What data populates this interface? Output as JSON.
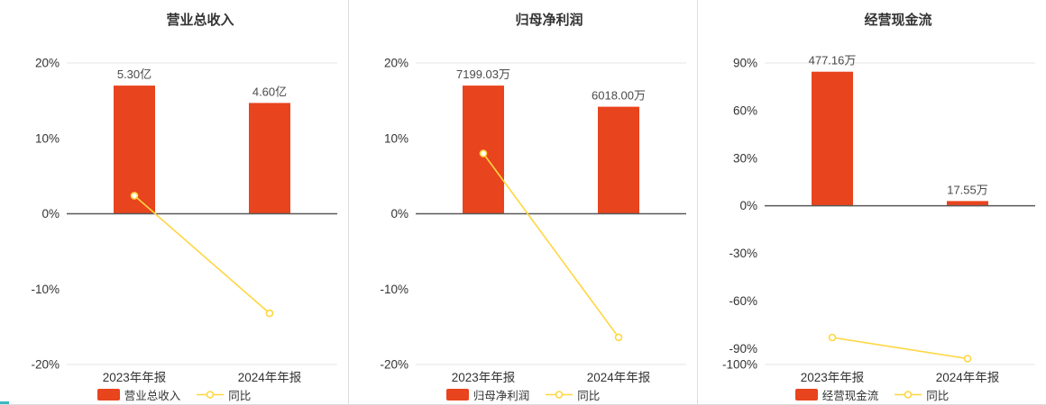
{
  "colors": {
    "bar": "#e8441e",
    "line": "#ffd640",
    "zero_line": "#595959",
    "grid": "#e4e4e4",
    "text": "#333333",
    "value_label": "#4a4a4a",
    "divider": "#dddddd"
  },
  "chart_data": [
    {
      "type": "bar+line",
      "title": "营业总收入",
      "categories": [
        "2023年年报",
        "2024年年报"
      ],
      "bars": {
        "name": "营业总收入",
        "value_labels": [
          "5.30亿",
          "4.60亿"
        ],
        "heights_pct_axis": [
          17.0,
          14.7
        ]
      },
      "line": {
        "name": "同比",
        "values_pct": [
          2.4,
          -13.2
        ]
      },
      "ylim": [
        -20,
        20
      ],
      "yticks": [
        20,
        10,
        0,
        -10,
        -20
      ],
      "ytick_suffix": "%",
      "grid": "top-bottom-only",
      "legend": [
        "营业总收入",
        "同比"
      ],
      "legend_position": "bottom"
    },
    {
      "type": "bar+line",
      "title": "归母净利润",
      "categories": [
        "2023年年报",
        "2024年年报"
      ],
      "bars": {
        "name": "归母净利润",
        "value_labels": [
          "7199.03万",
          "6018.00万"
        ],
        "heights_pct_axis": [
          17.0,
          14.2
        ]
      },
      "line": {
        "name": "同比",
        "values_pct": [
          8.0,
          -16.4
        ]
      },
      "ylim": [
        -20,
        20
      ],
      "yticks": [
        20,
        10,
        0,
        -10,
        -20
      ],
      "ytick_suffix": "%",
      "grid": "top-bottom-only",
      "legend": [
        "归母净利润",
        "同比"
      ],
      "legend_position": "bottom"
    },
    {
      "type": "bar+line",
      "title": "经营现金流",
      "categories": [
        "2023年年报",
        "2024年年报"
      ],
      "bars": {
        "name": "经营现金流",
        "value_labels": [
          "477.16万",
          "17.55万"
        ],
        "heights_pct_axis": [
          84.5,
          3.0
        ]
      },
      "line": {
        "name": "同比",
        "values_pct": [
          -83.0,
          -96.3
        ]
      },
      "ylim": [
        -100,
        90
      ],
      "yticks": [
        90,
        60,
        30,
        0,
        -30,
        -60,
        -90,
        -100
      ],
      "ytick_suffix": "%",
      "grid": "top-bottom-only",
      "legend": [
        "经营现金流",
        "同比"
      ],
      "legend_position": "bottom"
    }
  ]
}
